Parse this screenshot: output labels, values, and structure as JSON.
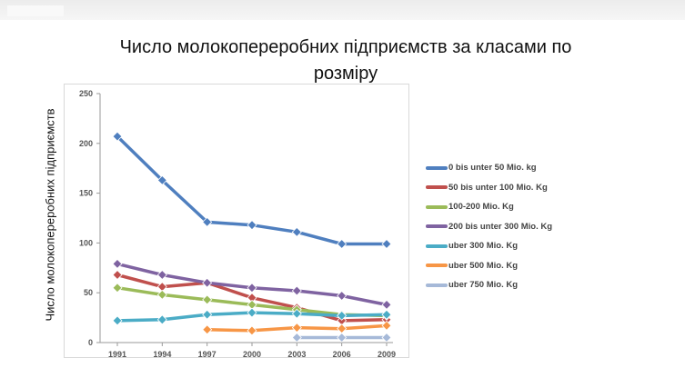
{
  "chart_data": {
    "type": "line",
    "title_line1": "Число молокопереробних підприємств за класами по",
    "title_line2": "розміру",
    "xlabel": "",
    "ylabel": "Число молокопереробних підприємств",
    "x": [
      "1991",
      "1994",
      "1997",
      "2000",
      "2003",
      "2006",
      "2009"
    ],
    "y_ticks": [
      "0",
      "50",
      "100",
      "150",
      "200",
      "250"
    ],
    "ylim": [
      0,
      250
    ],
    "grid": false,
    "legend_position": "right",
    "series": [
      {
        "name": "0 bis unter 50 Mio. kg",
        "color": "#4f7fbf",
        "values": [
          207,
          163,
          121,
          118,
          111,
          99,
          99
        ]
      },
      {
        "name": "50 bis unter 100 Mio. Kg",
        "color": "#c0504d",
        "values": [
          68,
          56,
          60,
          45,
          35,
          22,
          23
        ]
      },
      {
        "name": "100-200 Mio. Kg",
        "color": "#9bbb59",
        "values": [
          55,
          48,
          43,
          38,
          33,
          28,
          27
        ]
      },
      {
        "name": "200 bis unter 300 Mio. Kg",
        "color": "#7f63a1",
        "values": [
          79,
          68,
          60,
          55,
          52,
          47,
          38
        ]
      },
      {
        "name": "uber 300 Mio. Kg",
        "color": "#4bacc6",
        "values": [
          22,
          23,
          28,
          30,
          29,
          27,
          28
        ]
      },
      {
        "name": "uber 500 Mio. Kg",
        "color": "#f79646",
        "values": [
          null,
          null,
          13,
          12,
          15,
          14,
          17
        ]
      },
      {
        "name": "uber 750 Mio. Kg",
        "color": "#a6b9d8",
        "values": [
          null,
          null,
          null,
          null,
          5,
          5,
          5
        ]
      }
    ]
  }
}
